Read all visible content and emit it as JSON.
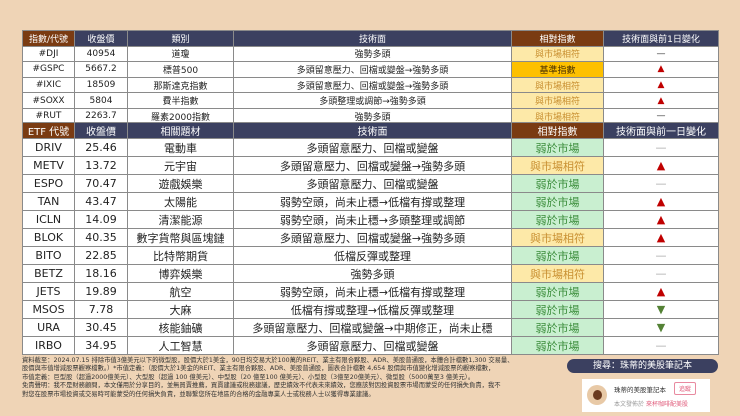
{
  "index_table": {
    "headers": [
      "指數/代號",
      "收盤價",
      "類別",
      "技術面",
      "相對指數",
      "技術面與前1日變化"
    ],
    "rows": [
      {
        "code": "#DJI",
        "close": "40954",
        "category": "道瓊",
        "tech": "強勢多頭",
        "relative": "與市場相符",
        "rel_type": "same",
        "change": "—",
        "change_type": "flat"
      },
      {
        "code": "#GSPC",
        "close": "5667.2",
        "category": "標普500",
        "tech": "多頭留意壓力、回檔或變盤→強勢多頭",
        "relative": "基準指數",
        "rel_type": "base",
        "change": "▲",
        "change_type": "up"
      },
      {
        "code": "#IXIC",
        "close": "18509",
        "category": "那斯達克指數",
        "tech": "多頭留意壓力、回檔或變盤→強勢多頭",
        "relative": "與市場相符",
        "rel_type": "same",
        "change": "▲",
        "change_type": "up"
      },
      {
        "code": "#SOXX",
        "close": "5804",
        "category": "費半指數",
        "tech": "多頭整理或調節→強勢多頭",
        "relative": "與市場相符",
        "rel_type": "same",
        "change": "▲",
        "change_type": "up"
      },
      {
        "code": "#RUT",
        "close": "2263.7",
        "category": "羅素2000指數",
        "tech": "強勢多頭",
        "relative": "與市場相符",
        "rel_type": "same",
        "change": "—",
        "change_type": "flat"
      }
    ]
  },
  "etf_table": {
    "headers": [
      "ETF 代號",
      "收盤價",
      "相關題材",
      "技術面",
      "相對指數",
      "技術面與前一日變化"
    ],
    "rows": [
      {
        "code": "DRIV",
        "close": "25.46",
        "category": "電動車",
        "tech": "多頭留意壓力、回檔或變盤",
        "relative": "弱於市場",
        "rel_type": "weak",
        "change": "—",
        "change_type": "flat"
      },
      {
        "code": "METV",
        "close": "13.72",
        "category": "元宇宙",
        "tech": "多頭留意壓力、回檔或變盤→強勢多頭",
        "relative": "與市場相符",
        "rel_type": "same",
        "change": "▲",
        "change_type": "up"
      },
      {
        "code": "ESPO",
        "close": "70.47",
        "category": "遊戲娛樂",
        "tech": "多頭留意壓力、回檔或變盤",
        "relative": "弱於市場",
        "rel_type": "weak",
        "change": "—",
        "change_type": "flat"
      },
      {
        "code": "TAN",
        "close": "43.47",
        "category": "太陽能",
        "tech": "弱勢空頭，尚未止穩→低檔有撐或整理",
        "relative": "弱於市場",
        "rel_type": "weak",
        "change": "▲",
        "change_type": "up"
      },
      {
        "code": "ICLN",
        "close": "14.09",
        "category": "清潔能源",
        "tech": "弱勢空頭，尚未止穩→多頭整理或調節",
        "relative": "弱於市場",
        "rel_type": "weak",
        "change": "▲",
        "change_type": "up"
      },
      {
        "code": "BLOK",
        "close": "40.35",
        "category": "數字貨幣與區塊鏈",
        "tech": "多頭留意壓力、回檔或變盤→強勢多頭",
        "relative": "與市場相符",
        "rel_type": "same",
        "change": "▲",
        "change_type": "up"
      },
      {
        "code": "BITO",
        "close": "22.85",
        "category": "比特幣期貨",
        "tech": "低檔反彈或整理",
        "relative": "弱於市場",
        "rel_type": "weak",
        "change": "—",
        "change_type": "flat"
      },
      {
        "code": "BETZ",
        "close": "18.16",
        "category": "博弈娛樂",
        "tech": "強勢多頭",
        "relative": "與市場相符",
        "rel_type": "same",
        "change": "—",
        "change_type": "flat"
      },
      {
        "code": "JETS",
        "close": "19.89",
        "category": "航空",
        "tech": "弱勢空頭，尚未止穩→低檔有撐或整理",
        "relative": "弱於市場",
        "rel_type": "weak",
        "change": "▲",
        "change_type": "up"
      },
      {
        "code": "MSOS",
        "close": "7.78",
        "category": "大麻",
        "tech": "低檔有撐或整理→低檔反彈或整理",
        "relative": "弱於市場",
        "rel_type": "weak",
        "change": "▼",
        "change_type": "down"
      },
      {
        "code": "URA",
        "close": "30.45",
        "category": "核能鈾礦",
        "tech": "多頭留意壓力、回檔或變盤→中期修正，尚未止穩",
        "relative": "弱於市場",
        "rel_type": "weak",
        "change": "▼",
        "change_type": "down"
      },
      {
        "code": "IRBO",
        "close": "34.95",
        "category": "人工智慧",
        "tech": "多頭留意壓力、回檔或變盤",
        "relative": "弱於市場",
        "rel_type": "weak",
        "change": "—",
        "change_type": "flat"
      }
    ]
  },
  "notes": [
    "資料截至：2024.07.15 排除市值3億美元以下的微型股，股價大於1美金，90日均交易大於100萬的REIT、業主有限合夥股、ADR、美股普通股，本體合計檔數1,300 交易量、",
    "股價與市值增減股票觀察檔數。）*市值定義：（股價大於1美金的REIT、業主有限合夥股、ADR、美股普通股，圖表合計檔數 4,654 股價與市值變化增減股票的觀察檔數，",
    "市值定義：巨型股（超過2000億美元）、大型股（超過 100 億美元）、中型股（20 億至100 億美元）、小型股（3億至20億美元）、微型股（5000萬至3 億美元）。",
    "免責聲明：我不是財務顧問，本文僅用於分享目的，並無買賣推薦，買賣建議或稅務建議，歷史績效不代表未來績效，您應該對因投資股票市場而蒙受的任何損失負責，我不",
    "對您在股票市場投資或交易時可能蒙受的任何損失負責，並聯繫您所在地區的合格的金融專業人士或稅務人士以獲得專業建議。"
  ],
  "search_banner": "搜尋：珠蒂的美股筆記本",
  "card": {
    "name": "珠蒂的美股筆記本",
    "follow": "追蹤",
    "published_prefix": "本文發佈於",
    "published_site": "來杯咖啡配美股"
  },
  "colors": {
    "header": "#3b4060",
    "header_accent": "#7a3b12",
    "same": "#fde9a8",
    "base": "#fdc000",
    "weak": "#c9efd0",
    "up": "#c00000",
    "down": "#548235"
  }
}
